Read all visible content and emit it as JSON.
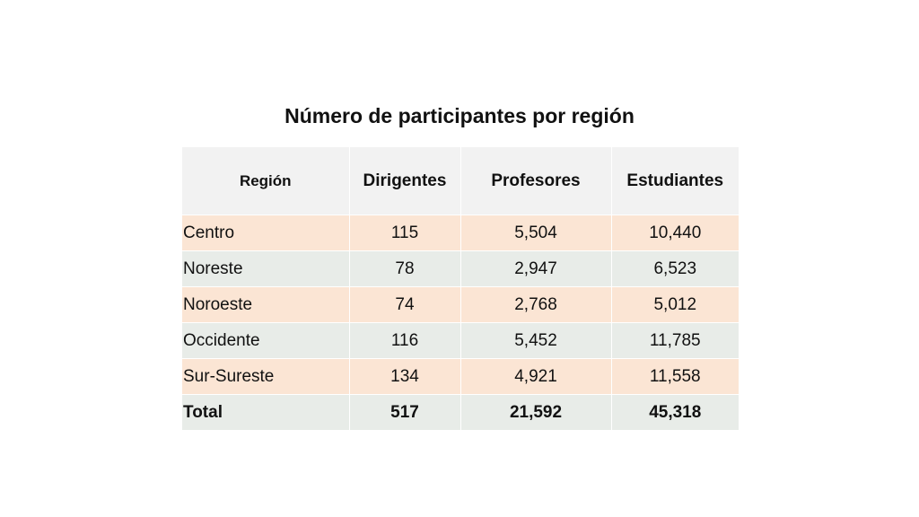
{
  "title": "Número de participantes por región",
  "table": {
    "headers": [
      "Región",
      "Dirigentes",
      "Profesores",
      "Estudiantes"
    ],
    "rows": [
      [
        "Centro",
        "115",
        "5,504",
        "10,440"
      ],
      [
        "Noreste",
        "78",
        "2,947",
        "6,523"
      ],
      [
        "Noroeste",
        "74",
        "2,768",
        "5,012"
      ],
      [
        "Occidente",
        "116",
        "5,452",
        "11,785"
      ],
      [
        "Sur-Sureste",
        "134",
        "4,921",
        "11,558"
      ],
      [
        "Total",
        "517",
        "21,592",
        "45,318"
      ]
    ]
  },
  "colors": {
    "header_bg": "#f2f2f2",
    "band_light_orange": "#fbe5d4",
    "band_light_gray": "#e8ece8"
  }
}
